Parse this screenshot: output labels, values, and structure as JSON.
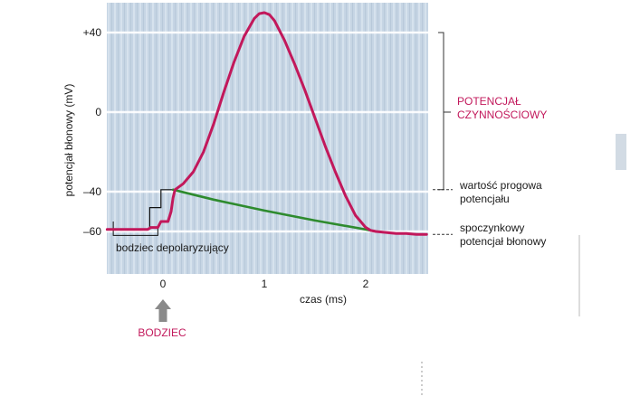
{
  "chart_data": {
    "type": "line",
    "title": "",
    "xlabel": "czas (ms)",
    "ylabel": "potencjał błonowy (mV)",
    "xlim": [
      -0.55,
      2.6
    ],
    "ylim": [
      -70,
      53
    ],
    "x_ticks": [
      {
        "value": 0,
        "label": "0"
      },
      {
        "value": 1,
        "label": "1"
      },
      {
        "value": 2,
        "label": "2"
      }
    ],
    "y_ticks": [
      {
        "value": 40,
        "label": "+40"
      },
      {
        "value": 0,
        "label": "0"
      },
      {
        "value": -40,
        "label": "–40"
      },
      {
        "value": -60,
        "label": "–60"
      }
    ],
    "grid": true,
    "colors": {
      "action_potential": "#c2185b",
      "threshold_line": "#2e8b2e",
      "panel": "#c5d4e3",
      "arrow": "#8a8a8a"
    },
    "series": [
      {
        "name": "",
        "color": "#c2185b",
        "x": [
          -0.55,
          -0.15,
          -0.12,
          -0.05,
          -0.02,
          0.05,
          0.08,
          0.1,
          0.12,
          0.2,
          0.3,
          0.4,
          0.5,
          0.6,
          0.7,
          0.8,
          0.9,
          0.95,
          1.0,
          1.05,
          1.1,
          1.2,
          1.3,
          1.4,
          1.5,
          1.6,
          1.7,
          1.8,
          1.9,
          2.0,
          2.05,
          2.1,
          2.2,
          2.3,
          2.4,
          2.5,
          2.6
        ],
        "y": [
          -59,
          -59,
          -58,
          -58,
          -55,
          -55,
          -50,
          -43,
          -39,
          -36,
          -30,
          -20,
          -6,
          10,
          25,
          38,
          47,
          49.5,
          50,
          49,
          46,
          36,
          24,
          11,
          -3,
          -17,
          -30,
          -42,
          -52,
          -58,
          -59.5,
          -60,
          -60.5,
          -61,
          -61,
          -61.5,
          -61.5
        ]
      },
      {
        "name": "",
        "color": "#2e8b2e",
        "x": [
          0.1,
          0.5,
          1.0,
          1.5,
          2.0,
          2.1
        ],
        "y": [
          -39,
          -44,
          -49.5,
          -54.5,
          -59,
          -60
        ]
      }
    ],
    "annotations": {
      "action_potential": "POTENCJAŁ\nCZYNNOŚCIOWY",
      "threshold": "wartość progowa\npotencjału",
      "resting": "spoczynkowy\npotencjał błonowy",
      "stimulus_step": "bodziec depolaryzujący",
      "stimulus_arrow": "BODZIEC"
    }
  }
}
